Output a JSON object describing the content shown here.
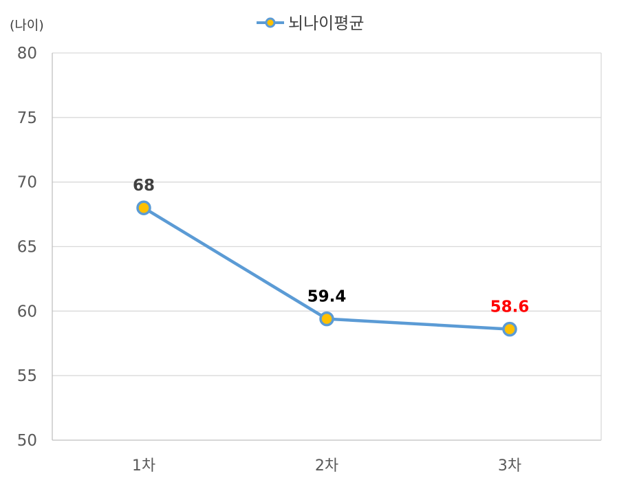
{
  "chart_data": {
    "type": "line",
    "categories": [
      "1차",
      "2차",
      "3차"
    ],
    "series": [
      {
        "name": "뇌나이평균",
        "values": [
          68,
          59.4,
          58.6
        ],
        "data_labels": [
          "68",
          "59.4",
          "58.6"
        ],
        "data_label_colors": [
          "#404040",
          "#000000",
          "#ff0000"
        ]
      }
    ],
    "ylabel": "(나이)",
    "ylim": [
      50,
      80
    ],
    "yticks": [
      "50",
      "55",
      "60",
      "65",
      "70",
      "75",
      "80"
    ],
    "grid": true,
    "legend": "top-center",
    "colors": {
      "line": "#5b9bd5",
      "marker_fill": "#ffc000",
      "marker_stroke": "#5b9bd5",
      "grid": "#d9d9d9",
      "axis": "#bfbfbf",
      "tick_text": "#595959"
    }
  }
}
